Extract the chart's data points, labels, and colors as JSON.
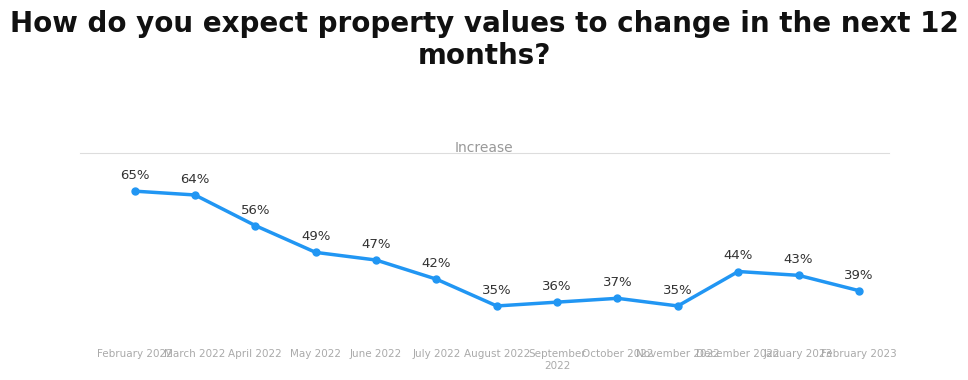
{
  "title": "How do you expect property values to change in the next 12\nmonths?",
  "subtitle": "Increase",
  "categories": [
    "February 2022",
    "March 2022",
    "April 2022",
    "May 2022",
    "June 2022",
    "July 2022",
    "August 2022",
    "September\n2022",
    "October 2022",
    "November 2022",
    "December 2022",
    "January 2023",
    "February 2023"
  ],
  "values": [
    65,
    64,
    56,
    49,
    47,
    42,
    35,
    36,
    37,
    35,
    44,
    43,
    39
  ],
  "line_color": "#2196F3",
  "marker_color": "#2196F3",
  "background_color": "#ffffff",
  "title_fontsize": 20,
  "subtitle_fontsize": 10,
  "subtitle_color": "#999999",
  "label_fontsize": 9.5,
  "tick_fontsize": 7.5,
  "tick_color": "#aaaaaa",
  "ylim": [
    25,
    75
  ],
  "line_width": 2.5,
  "marker_size": 5,
  "separator_color": "#dddddd"
}
